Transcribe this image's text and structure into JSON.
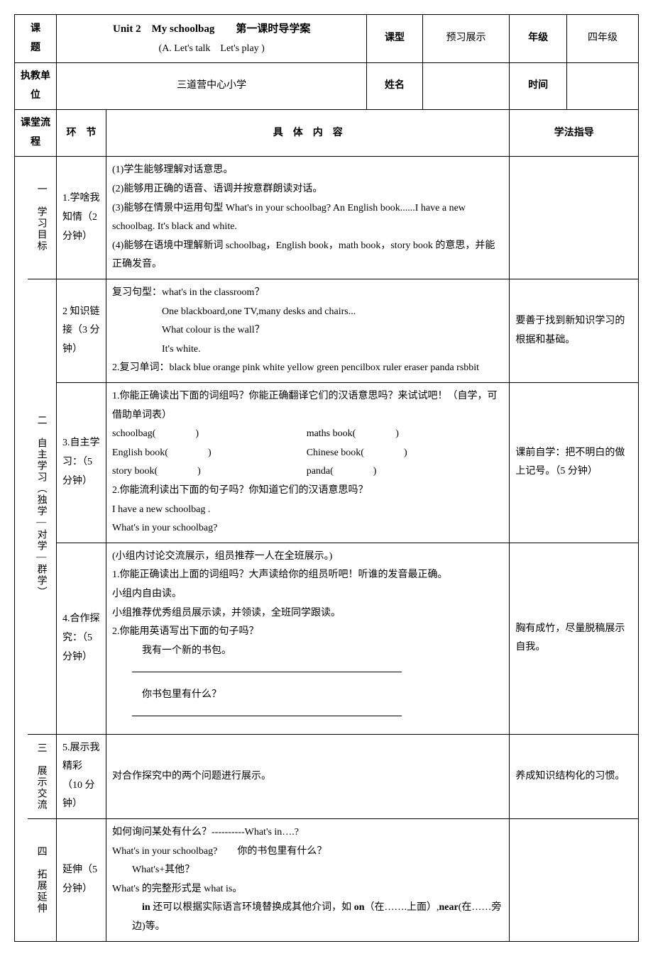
{
  "header": {
    "col_topic": "课　　题",
    "title_line1": "Unit 2　My schoolbag　　第一课时导学案",
    "title_line2": "(A. Let's talk　Let's play )",
    "col_type": "课型",
    "type_val": "预习展示",
    "col_grade": "年级",
    "grade_val": "四年级",
    "col_unit": "执教单位",
    "unit_val": "三道营中心小学",
    "col_name": "姓名",
    "col_time": "时间",
    "col_flow": "课堂流程",
    "col_stage": "环　节",
    "col_content": "具　体　内　容",
    "col_guide": "学法指导"
  },
  "sec1": {
    "side": "一　学习目标",
    "stage": "1.学啥我知情（2 分钟）",
    "l1": "(1)学生能够理解对话意思。",
    "l2": "(2)能够用正确的语音、语调并按意群朗读对话。",
    "l3": "(3)能够在情景中运用句型 What's in your schoolbag? An English book......I have a new schoolbag. It's black and white.",
    "l4": "(4)能够在语境中理解新词 schoolbag，English book，math book，story book 的意思，并能正确发音。"
  },
  "sec2": {
    "side": "二　自主学习（独学—对学—群学）",
    "stage_a": "2 知识链接（3 分钟）",
    "a_l1": "复习句型：what's in the classroom？",
    "a_l2": "One blackboard,one TV,many desks and chairs...",
    "a_l3": "What colour is the wall？",
    "a_l4": "It's white.",
    "a_l5": "2.复习单词：black blue orange pink white yellow green pencilbox ruler eraser panda rsbbit",
    "a_guide": "要善于找到新知识学习的根据和基础。",
    "stage_b": "3.自主学习：（5 分钟）",
    "b_l1": "1.你能正确读出下面的词组吗？你能正确翻译它们的汉语意思吗？来试试吧！（自学，可借助单词表）",
    "b_w1a": "schoolbag(　　　　)",
    "b_w1b": "maths book(　　　　)",
    "b_w2a": "English book(　　　　)",
    "b_w2b": "Chinese book(　　　　)",
    "b_w3a": "story book(　　　　)",
    "b_w3b": "panda(　　　　)",
    "b_l2": "2.你能流利读出下面的句子吗？你知道它们的汉语意思吗？",
    "b_l3": "I have a new schoolbag .",
    "b_l4": "What's in your schoolbag?",
    "b_guide": "课前自学：把不明白的做上记号。（5 分钟）",
    "stage_c": "4.合作探究：（5 分钟）",
    "c_l1": "(小组内讨论交流展示，组员推荐一人在全班展示。)",
    "c_l2": "1.你能正确读出上面的词组吗？大声读给你的组员听吧！听谁的发音最正确。",
    "c_l3": "小组内自由读。",
    "c_l4": "小组推荐优秀组员展示读，并领读，全班同学跟读。",
    "c_l5": "2.你能用英语写出下面的句子吗？",
    "c_l6": "我有一个新的书包。",
    "c_l7": "你书包里有什么？",
    "c_guide": "胸有成竹，尽量脱稿展示自我。"
  },
  "sec3": {
    "side": "三　展示交流",
    "stage": "5.展示我精彩（10 分钟）",
    "l1": "对合作探究中的两个问题进行展示。",
    "guide": "养成知识结构化的习惯。"
  },
  "sec4": {
    "side": "四　拓展延伸",
    "stage": "延伸（5 分钟）",
    "l1": "如何询问某处有什么？----------What's in….?",
    "l2": "What's in your schoolbag?　　你的书包里有什么？",
    "l3": "What's+其他？",
    "l4": "What's 的完整形式是 what is。",
    "l5": "in 还可以根据实际语言环境替换成其他介词，如 on（在…….上面）,near(在……旁边)等。"
  }
}
